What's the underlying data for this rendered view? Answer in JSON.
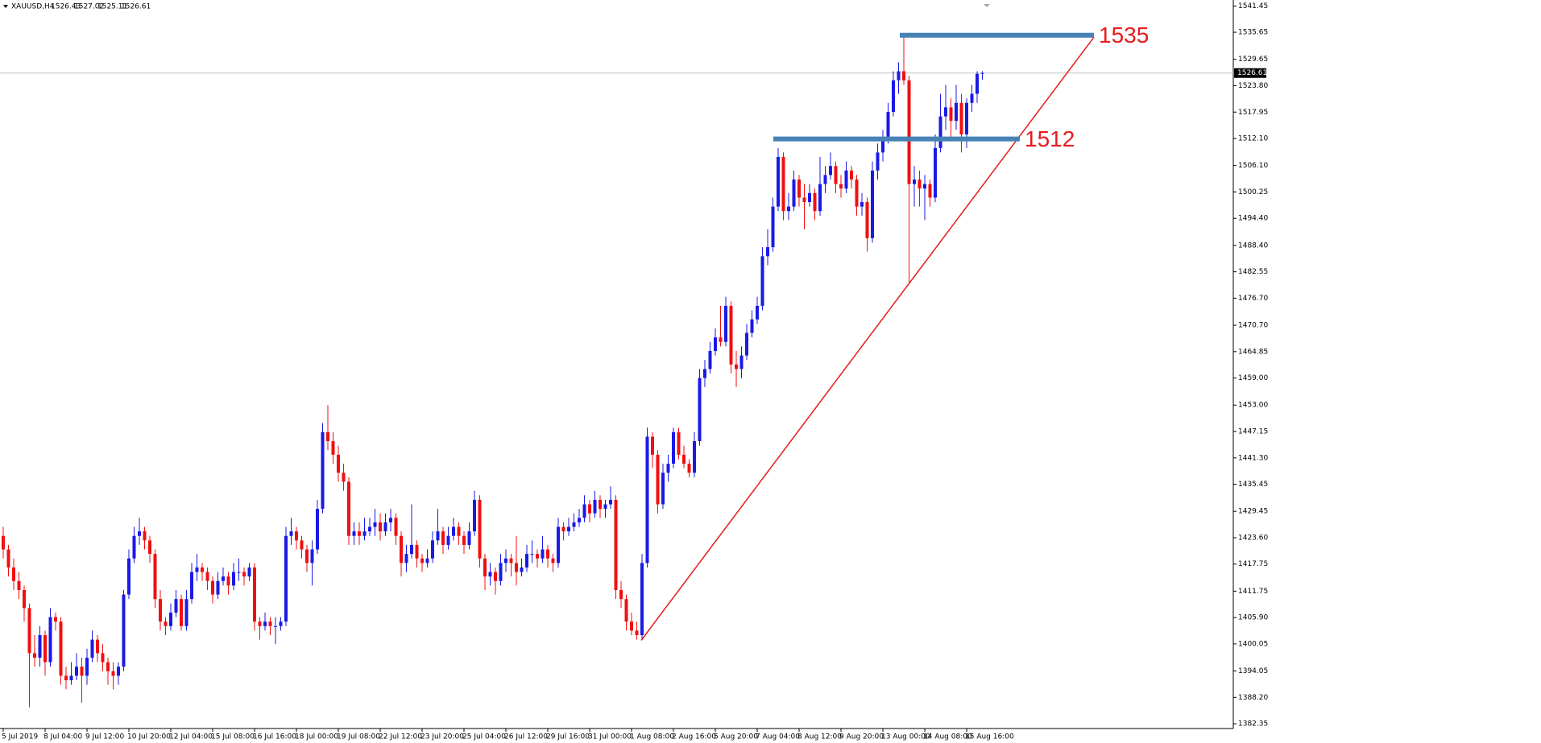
{
  "chart_data": {
    "type": "candlestick",
    "title": "XAUUSD,H4",
    "up_color": "#1a1ae6",
    "down_color": "#f01010",
    "level_color": "#4682b4",
    "trend_color": "#e8191c",
    "ylim": [
      1381.3,
      1542.8
    ],
    "yticks": [
      1541.45,
      1535.65,
      1529.65,
      {
        "value": 1523.8,
        "label": "1523.80"
      },
      1517.95,
      {
        "value": 1512.1,
        "label": "1512.10"
      },
      {
        "value": 1506.1,
        "label": "1506.10"
      },
      1500.25,
      {
        "value": 1494.4,
        "label": "1494.40"
      },
      {
        "value": 1488.4,
        "label": "1488.40"
      },
      1482.55,
      {
        "value": 1476.7,
        "label": "1476.70"
      },
      {
        "value": 1470.7,
        "label": "1470.70"
      },
      1464.85,
      {
        "value": 1459,
        "label": "1459.00"
      },
      {
        "value": 1453,
        "label": "1453.00"
      },
      1447.15,
      {
        "value": 1441.3,
        "label": "1441.30"
      },
      1435.45,
      1429.45,
      {
        "value": 1423.6,
        "label": "1423.60"
      },
      1417.75,
      1411.75,
      {
        "value": 1405.9,
        "label": "1405.90"
      },
      1400.05,
      1394.05,
      {
        "value": 1388.2,
        "label": "1388.20"
      },
      1382.35
    ],
    "x_labels": [
      "5 Jul 2019",
      "8 Jul 04:00",
      "9 Jul 12:00",
      "10 Jul 20:00",
      "12 Jul 04:00",
      "15 Jul 08:00",
      "16 Jul 16:00",
      "18 Jul 00:00",
      "19 Jul 08:00",
      "22 Jul 12:00",
      "23 Jul 20:00",
      "25 Jul 04:00",
      "26 Jul 12:00",
      "29 Jul 16:00",
      "31 Jul 00:00",
      "1 Aug 08:00",
      "2 Aug 16:00",
      "5 Aug 20:00",
      "7 Aug 04:00",
      "8 Aug 12:00",
      "9 Aug 20:00",
      "13 Aug 00:00",
      "14 Aug 08:00",
      "15 Aug 16:00"
    ],
    "levels": [
      1535,
      1512
    ],
    "ohlc": [
      [
        1424,
        1426,
        1419,
        1421
      ],
      [
        1421,
        1422,
        1415,
        1417
      ],
      [
        1417,
        1419,
        1412,
        1414
      ],
      [
        1414,
        1416,
        1410,
        1412
      ],
      [
        1412,
        1413,
        1405,
        1408
      ],
      [
        1408,
        1409,
        1386,
        1398
      ],
      [
        1398,
        1402,
        1395,
        1397
      ],
      [
        1397,
        1404,
        1395,
        1402
      ],
      [
        1402,
        1403,
        1393,
        1396
      ],
      [
        1396,
        1408,
        1395,
        1406
      ],
      [
        1406,
        1407,
        1403,
        1405
      ],
      [
        1405,
        1406,
        1391,
        1393
      ],
      [
        1393,
        1395,
        1390,
        1392
      ],
      [
        1392,
        1396,
        1391,
        1393
      ],
      [
        1393,
        1398,
        1392,
        1395
      ],
      [
        1395,
        1397,
        1387,
        1393
      ],
      [
        1393,
        1399,
        1391,
        1397
      ],
      [
        1397,
        1403,
        1396,
        1401
      ],
      [
        1401,
        1402,
        1396,
        1398
      ],
      [
        1398,
        1400,
        1394,
        1396
      ],
      [
        1396,
        1397,
        1391,
        1394
      ],
      [
        1394,
        1396,
        1390,
        1393
      ],
      [
        1393,
        1396,
        1391,
        1395
      ],
      [
        1395,
        1412,
        1394,
        1411
      ],
      [
        1411,
        1421,
        1410,
        1419
      ],
      [
        1419,
        1426,
        1418,
        1424
      ],
      [
        1424,
        1428,
        1422,
        1425
      ],
      [
        1425,
        1426,
        1421,
        1423
      ],
      [
        1423,
        1424,
        1418,
        1420
      ],
      [
        1420,
        1421,
        1408,
        1410
      ],
      [
        1410,
        1412,
        1403,
        1405
      ],
      [
        1405,
        1406,
        1402,
        1404
      ],
      [
        1404,
        1409,
        1403,
        1407
      ],
      [
        1407,
        1412,
        1406,
        1410
      ],
      [
        1410,
        1411,
        1403,
        1404
      ],
      [
        1404,
        1412,
        1403,
        1410
      ],
      [
        1410,
        1418,
        1409,
        1416
      ],
      [
        1416,
        1420,
        1414,
        1417
      ],
      [
        1417,
        1418,
        1414,
        1416
      ],
      [
        1416,
        1417,
        1412,
        1414
      ],
      [
        1414,
        1415,
        1409,
        1411
      ],
      [
        1411,
        1416,
        1410,
        1414
      ],
      [
        1414,
        1417,
        1413,
        1415
      ],
      [
        1415,
        1416,
        1411,
        1413
      ],
      [
        1413,
        1418,
        1412,
        1416
      ],
      [
        1416,
        1419,
        1414,
        1416
      ],
      [
        1416,
        1417,
        1413,
        1415
      ],
      [
        1415,
        1418,
        1414,
        1417
      ],
      [
        1417,
        1418,
        1403,
        1405
      ],
      [
        1405,
        1406,
        1401,
        1404
      ],
      [
        1404,
        1407,
        1403,
        1405
      ],
      [
        1405,
        1406,
        1402,
        1404
      ],
      [
        1404,
        1406,
        1400,
        1404
      ],
      [
        1404,
        1406,
        1403,
        1405
      ],
      [
        1405,
        1426,
        1404,
        1424
      ],
      [
        1424,
        1428,
        1422,
        1425
      ],
      [
        1425,
        1426,
        1421,
        1423
      ],
      [
        1423,
        1424,
        1419,
        1421
      ],
      [
        1421,
        1422,
        1416,
        1418
      ],
      [
        1418,
        1423,
        1413,
        1421
      ],
      [
        1421,
        1432,
        1420,
        1430
      ],
      [
        1430,
        1449,
        1429,
        1447
      ],
      [
        1447,
        1453,
        1443,
        1445
      ],
      [
        1445,
        1447,
        1440,
        1442
      ],
      [
        1442,
        1444,
        1436,
        1438
      ],
      [
        1438,
        1440,
        1434,
        1436
      ],
      [
        1436,
        1437,
        1422,
        1424
      ],
      [
        1424,
        1427,
        1422,
        1425
      ],
      [
        1425,
        1427,
        1422,
        1424
      ],
      [
        1424,
        1428,
        1423,
        1425
      ],
      [
        1425,
        1428,
        1424,
        1426
      ],
      [
        1426,
        1430,
        1424,
        1427
      ],
      [
        1427,
        1429,
        1423,
        1425
      ],
      [
        1425,
        1429,
        1424,
        1427
      ],
      [
        1427,
        1430,
        1425,
        1428
      ],
      [
        1428,
        1429,
        1422,
        1424
      ],
      [
        1424,
        1425,
        1415,
        1418
      ],
      [
        1418,
        1422,
        1416,
        1420
      ],
      [
        1420,
        1431,
        1419,
        1422
      ],
      [
        1422,
        1423,
        1417,
        1419
      ],
      [
        1419,
        1420,
        1416,
        1418
      ],
      [
        1418,
        1421,
        1417,
        1419
      ],
      [
        1419,
        1425,
        1418,
        1423
      ],
      [
        1423,
        1430,
        1422,
        1425
      ],
      [
        1425,
        1426,
        1420,
        1422
      ],
      [
        1422,
        1426,
        1421,
        1424
      ],
      [
        1424,
        1428,
        1423,
        1426
      ],
      [
        1426,
        1427,
        1422,
        1424
      ],
      [
        1424,
        1425,
        1420,
        1422
      ],
      [
        1422,
        1427,
        1421,
        1425
      ],
      [
        1425,
        1434,
        1424,
        1432
      ],
      [
        1432,
        1433,
        1417,
        1419
      ],
      [
        1419,
        1420,
        1412,
        1415
      ],
      [
        1415,
        1418,
        1413,
        1416
      ],
      [
        1416,
        1417,
        1411,
        1414
      ],
      [
        1414,
        1420,
        1413,
        1418
      ],
      [
        1418,
        1421,
        1416,
        1419
      ],
      [
        1419,
        1420,
        1415,
        1418
      ],
      [
        1418,
        1424,
        1413,
        1416
      ],
      [
        1416,
        1419,
        1415,
        1417
      ],
      [
        1417,
        1422,
        1416,
        1420
      ],
      [
        1420,
        1423,
        1418,
        1420
      ],
      [
        1420,
        1421,
        1417,
        1419
      ],
      [
        1419,
        1424,
        1418,
        1421
      ],
      [
        1421,
        1422,
        1417,
        1419
      ],
      [
        1419,
        1420,
        1416,
        1418
      ],
      [
        1418,
        1428,
        1417,
        1426
      ],
      [
        1426,
        1427,
        1423,
        1425
      ],
      [
        1425,
        1428,
        1424,
        1426
      ],
      [
        1426,
        1429,
        1425,
        1427
      ],
      [
        1427,
        1430,
        1426,
        1428
      ],
      [
        1428,
        1433,
        1427,
        1431
      ],
      [
        1431,
        1432,
        1427,
        1429
      ],
      [
        1429,
        1434,
        1428,
        1432
      ],
      [
        1432,
        1433,
        1428,
        1430
      ],
      [
        1430,
        1432,
        1428,
        1431
      ],
      [
        1431,
        1435,
        1430,
        1432
      ],
      [
        1432,
        1433,
        1410,
        1412
      ],
      [
        1412,
        1414,
        1408,
        1410
      ],
      [
        1410,
        1411,
        1403,
        1405
      ],
      [
        1405,
        1407,
        1402,
        1403
      ],
      [
        1403,
        1405,
        1401,
        1402
      ],
      [
        1402,
        1420,
        1401,
        1418
      ],
      [
        1418,
        1448,
        1417,
        1446
      ],
      [
        1446,
        1447,
        1439,
        1442
      ],
      [
        1442,
        1443,
        1429,
        1431
      ],
      [
        1431,
        1440,
        1430,
        1438
      ],
      [
        1438,
        1442,
        1436,
        1440
      ],
      [
        1440,
        1448,
        1439,
        1447
      ],
      [
        1447,
        1448,
        1441,
        1442
      ],
      [
        1442,
        1444,
        1439,
        1440
      ],
      [
        1440,
        1441,
        1437,
        1438
      ],
      [
        1438,
        1447,
        1437,
        1445
      ],
      [
        1445,
        1461,
        1444,
        1459
      ],
      [
        1459,
        1463,
        1457,
        1461
      ],
      [
        1461,
        1467,
        1460,
        1465
      ],
      [
        1465,
        1470,
        1464,
        1468
      ],
      [
        1468,
        1475,
        1466,
        1467
      ],
      [
        1467,
        1477,
        1466,
        1475
      ],
      [
        1475,
        1476,
        1460,
        1462
      ],
      [
        1462,
        1465,
        1457,
        1461
      ],
      [
        1461,
        1466,
        1459,
        1464
      ],
      [
        1464,
        1471,
        1463,
        1469
      ],
      [
        1469,
        1474,
        1468,
        1472
      ],
      [
        1472,
        1477,
        1471,
        1475
      ],
      [
        1475,
        1488,
        1474,
        1486
      ],
      [
        1486,
        1492,
        1484,
        1488
      ],
      [
        1488,
        1499,
        1487,
        1497
      ],
      [
        1497,
        1510,
        1496,
        1508
      ],
      [
        1508,
        1509,
        1494,
        1496
      ],
      [
        1496,
        1500,
        1494,
        1497
      ],
      [
        1497,
        1505,
        1496,
        1503
      ],
      [
        1503,
        1504,
        1497,
        1499
      ],
      [
        1499,
        1502,
        1492,
        1498
      ],
      [
        1498,
        1502,
        1497,
        1500
      ],
      [
        1500,
        1501,
        1494,
        1496
      ],
      [
        1496,
        1508,
        1495,
        1502
      ],
      [
        1502,
        1506,
        1500,
        1504
      ],
      [
        1504,
        1509,
        1503,
        1506
      ],
      [
        1506,
        1507,
        1500,
        1502
      ],
      [
        1502,
        1504,
        1499,
        1501
      ],
      [
        1501,
        1507,
        1500,
        1505
      ],
      [
        1505,
        1506,
        1501,
        1503
      ],
      [
        1503,
        1504,
        1495,
        1497
      ],
      [
        1497,
        1500,
        1495,
        1498
      ],
      [
        1498,
        1499,
        1487,
        1490
      ],
      [
        1490,
        1507,
        1489,
        1505
      ],
      [
        1505,
        1511,
        1503,
        1509
      ],
      [
        1509,
        1514,
        1507,
        1512
      ],
      [
        1512,
        1520,
        1511,
        1518
      ],
      [
        1518,
        1527,
        1517,
        1525
      ],
      [
        1525,
        1529,
        1522,
        1527
      ],
      [
        1527,
        1535,
        1524,
        1525
      ],
      [
        1525,
        1526,
        1480,
        1502
      ],
      [
        1502,
        1506,
        1497,
        1503
      ],
      [
        1503,
        1505,
        1497,
        1501
      ],
      [
        1501,
        1504,
        1494,
        1502
      ],
      [
        1502,
        1503,
        1497,
        1499
      ],
      [
        1499,
        1513,
        1498,
        1510
      ],
      [
        1510,
        1522,
        1509,
        1517
      ],
      [
        1517,
        1524,
        1514,
        1519
      ],
      [
        1519,
        1521,
        1512,
        1516
      ],
      [
        1516,
        1524,
        1514,
        1520
      ],
      [
        1520,
        1522,
        1509,
        1513
      ],
      [
        1513,
        1521,
        1510,
        1520
      ],
      [
        1520,
        1524,
        1518,
        1522
      ],
      [
        1522,
        1527,
        1520,
        1526.43
      ],
      [
        1526.43,
        1527.02,
        1525.11,
        1526.61
      ]
    ]
  }
}
